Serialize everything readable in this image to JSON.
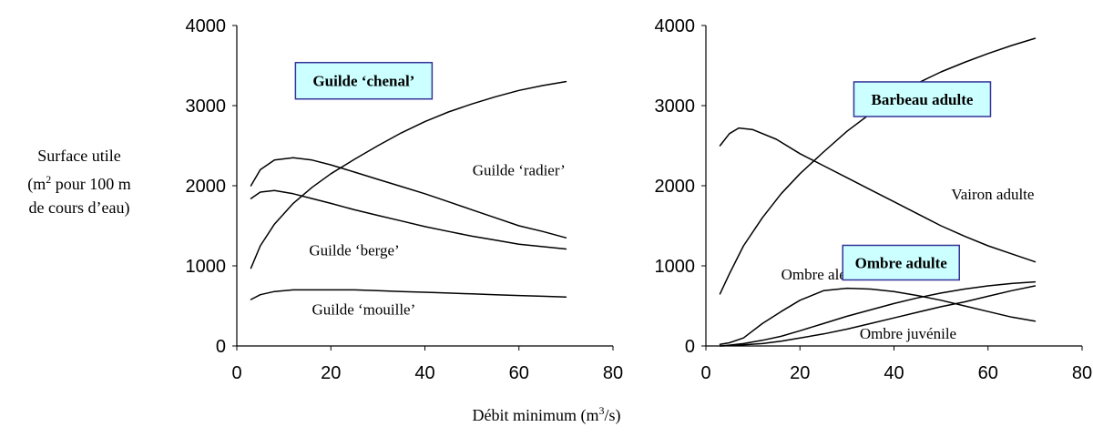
{
  "y_label": {
    "line1": "Surface utile",
    "line2_pre": "(m",
    "line2_sup": "2",
    "line2_post": " pour 100 m",
    "line3": "de cours d’eau)"
  },
  "x_label": {
    "pre": "Débit minimum (m",
    "sup": "3",
    "post": "/s)"
  },
  "colors": {
    "line": "#000000",
    "box_fill": "#ccffff",
    "box_border": "#333399"
  },
  "chart_data": [
    {
      "type": "line",
      "xlim": [
        0,
        80
      ],
      "ylim": [
        0,
        4000
      ],
      "x_ticks": [
        "0",
        "20",
        "40",
        "60",
        "80"
      ],
      "y_ticks": [
        "0",
        "1000",
        "2000",
        "3000",
        "4000"
      ],
      "grid": false,
      "series": [
        {
          "name": "Guilde ‘chenal’",
          "boxed": true,
          "x": [
            3,
            5,
            8,
            12,
            16,
            20,
            25,
            30,
            35,
            40,
            45,
            50,
            55,
            60,
            65,
            70
          ],
          "y": [
            970,
            1250,
            1520,
            1780,
            1980,
            2150,
            2330,
            2500,
            2660,
            2800,
            2920,
            3020,
            3110,
            3190,
            3250,
            3300
          ]
        },
        {
          "name": "Guilde ‘radier’",
          "boxed": false,
          "x": [
            3,
            5,
            8,
            12,
            16,
            20,
            25,
            30,
            35,
            40,
            45,
            50,
            55,
            60,
            65,
            70
          ],
          "y": [
            2000,
            2200,
            2320,
            2350,
            2320,
            2260,
            2170,
            2080,
            1990,
            1900,
            1800,
            1700,
            1600,
            1500,
            1430,
            1350
          ]
        },
        {
          "name": "Guilde ‘berge’",
          "boxed": false,
          "x": [
            3,
            5,
            8,
            12,
            16,
            20,
            25,
            30,
            35,
            40,
            45,
            50,
            55,
            60,
            65,
            70
          ],
          "y": [
            1840,
            1920,
            1940,
            1900,
            1840,
            1780,
            1700,
            1630,
            1560,
            1490,
            1430,
            1370,
            1320,
            1270,
            1240,
            1210
          ]
        },
        {
          "name": "Guilde ‘mouille’",
          "boxed": false,
          "x": [
            3,
            5,
            8,
            12,
            16,
            20,
            25,
            30,
            35,
            40,
            45,
            50,
            55,
            60,
            65,
            70
          ],
          "y": [
            580,
            640,
            680,
            700,
            700,
            700,
            700,
            690,
            680,
            670,
            660,
            650,
            640,
            630,
            620,
            610
          ]
        }
      ]
    },
    {
      "type": "line",
      "xlim": [
        0,
        80
      ],
      "ylim": [
        0,
        4000
      ],
      "x_ticks": [
        "0",
        "20",
        "40",
        "60",
        "80"
      ],
      "y_ticks": [
        "0",
        "1000",
        "2000",
        "3000",
        "4000"
      ],
      "grid": false,
      "series": [
        {
          "name": "Barbeau adulte",
          "boxed": true,
          "x": [
            3,
            5,
            8,
            12,
            16,
            20,
            25,
            30,
            35,
            40,
            45,
            50,
            55,
            60,
            65,
            70
          ],
          "y": [
            650,
            900,
            1250,
            1600,
            1900,
            2150,
            2420,
            2680,
            2900,
            3100,
            3280,
            3420,
            3540,
            3650,
            3750,
            3840
          ]
        },
        {
          "name": "Vairon adulte",
          "boxed": false,
          "x": [
            3,
            5,
            7,
            10,
            15,
            20,
            25,
            30,
            35,
            40,
            45,
            50,
            55,
            60,
            65,
            70
          ],
          "y": [
            2500,
            2650,
            2720,
            2700,
            2580,
            2400,
            2250,
            2100,
            1950,
            1800,
            1650,
            1500,
            1370,
            1250,
            1150,
            1050
          ]
        },
        {
          "name": "Ombre alevin",
          "boxed": false,
          "x": [
            3,
            5,
            8,
            12,
            16,
            20,
            25,
            30,
            35,
            40,
            45,
            50,
            55,
            60,
            65,
            70
          ],
          "y": [
            20,
            40,
            100,
            280,
            430,
            570,
            690,
            720,
            710,
            680,
            630,
            570,
            500,
            430,
            360,
            310
          ]
        },
        {
          "name": "Ombre adulte",
          "boxed": true,
          "x": [
            3,
            5,
            8,
            12,
            16,
            20,
            25,
            30,
            35,
            40,
            45,
            50,
            55,
            60,
            65,
            70
          ],
          "y": [
            0,
            10,
            30,
            70,
            120,
            190,
            280,
            370,
            450,
            530,
            600,
            660,
            710,
            750,
            780,
            800
          ]
        },
        {
          "name": "Ombre juvénile",
          "boxed": false,
          "x": [
            3,
            5,
            8,
            12,
            16,
            20,
            25,
            30,
            35,
            40,
            45,
            50,
            55,
            60,
            65,
            70
          ],
          "y": [
            0,
            5,
            15,
            30,
            60,
            100,
            150,
            210,
            280,
            350,
            420,
            490,
            550,
            620,
            690,
            750
          ]
        }
      ]
    }
  ]
}
